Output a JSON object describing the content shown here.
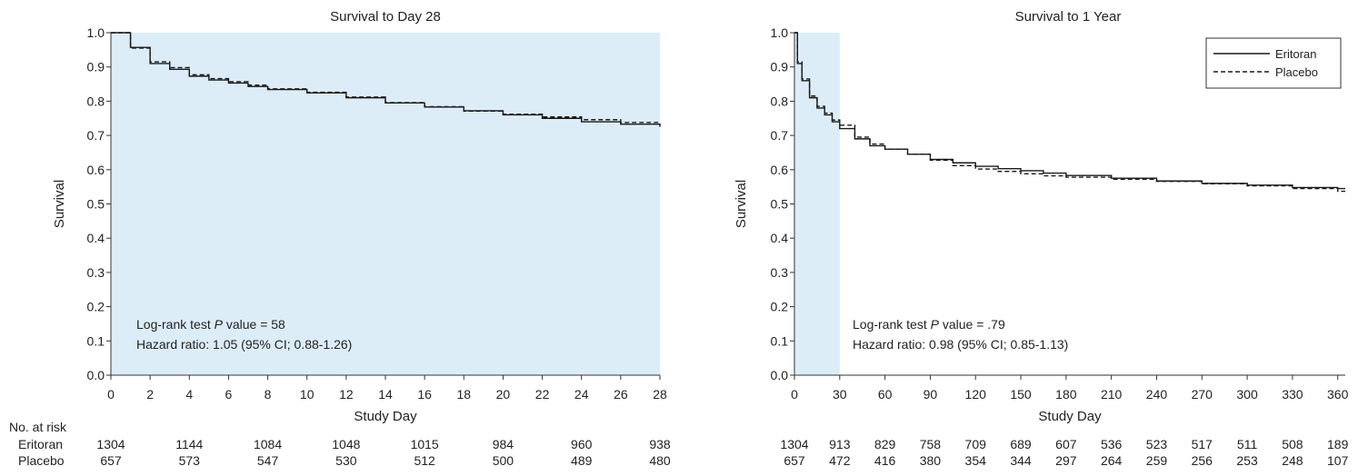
{
  "chart_data": [
    {
      "type": "line",
      "title": "Survival to Day 28",
      "xlabel": "Study Day",
      "ylabel": "Survival",
      "xlim": [
        0,
        28
      ],
      "ylim": [
        0,
        1.0
      ],
      "x_ticks": [
        0,
        2,
        4,
        6,
        8,
        10,
        12,
        14,
        16,
        18,
        20,
        22,
        24,
        26,
        28
      ],
      "y_ticks": [
        "0.0",
        "0.1",
        "0.2",
        "0.3",
        "0.4",
        "0.5",
        "0.6",
        "0.7",
        "0.8",
        "0.9",
        "1.0"
      ],
      "shaded_region": [
        0,
        28
      ],
      "legend": null,
      "annotations": {
        "line1_prefix": "Log-rank test ",
        "line1_italic": "P",
        "line1_suffix": " value = 58",
        "line2": "Hazard ratio: 1.05 (95% CI; 0.88-1.26)"
      },
      "series": [
        {
          "name": "Eritoran",
          "style": "solid",
          "points": [
            [
              0,
              1.0
            ],
            [
              1,
              1.0
            ],
            [
              1,
              0.957
            ],
            [
              2,
              0.95
            ],
            [
              2,
              0.91
            ],
            [
              3,
              0.893
            ],
            [
              4,
              0.873
            ],
            [
              5,
              0.862
            ],
            [
              6,
              0.853
            ],
            [
              7,
              0.843
            ],
            [
              8,
              0.834
            ],
            [
              10,
              0.824
            ],
            [
              12,
              0.81
            ],
            [
              14,
              0.795
            ],
            [
              16,
              0.783
            ],
            [
              18,
              0.772
            ],
            [
              20,
              0.76
            ],
            [
              22,
              0.75
            ],
            [
              24,
              0.74
            ],
            [
              26,
              0.733
            ],
            [
              28,
              0.725
            ]
          ]
        },
        {
          "name": "Placebo",
          "style": "dashed",
          "points": [
            [
              0,
              1.0
            ],
            [
              1,
              1.0
            ],
            [
              1,
              0.955
            ],
            [
              2,
              0.945
            ],
            [
              2,
              0.915
            ],
            [
              3,
              0.898
            ],
            [
              4,
              0.877
            ],
            [
              5,
              0.866
            ],
            [
              6,
              0.857
            ],
            [
              7,
              0.847
            ],
            [
              8,
              0.836
            ],
            [
              10,
              0.826
            ],
            [
              12,
              0.812
            ],
            [
              14,
              0.796
            ],
            [
              16,
              0.784
            ],
            [
              18,
              0.771
            ],
            [
              20,
              0.762
            ],
            [
              22,
              0.754
            ],
            [
              24,
              0.746
            ],
            [
              26,
              0.738
            ],
            [
              28,
              0.732
            ]
          ]
        }
      ],
      "at_risk": {
        "header": "No. at risk",
        "x": [
          0,
          4,
          8,
          12,
          16,
          20,
          24,
          28
        ],
        "rows": [
          {
            "label": "Eritoran",
            "values": [
              "1304",
              "1144",
              "1084",
              "1048",
              "1015",
              "984",
              "960",
              "938"
            ]
          },
          {
            "label": "Placebo",
            "values": [
              "657",
              "573",
              "547",
              "530",
              "512",
              "500",
              "489",
              "480"
            ]
          }
        ]
      }
    },
    {
      "type": "line",
      "title": "Survival to 1 Year",
      "xlabel": "Study Day",
      "ylabel": "Survival",
      "xlim": [
        0,
        365
      ],
      "ylim": [
        0,
        1.0
      ],
      "x_ticks": [
        0,
        30,
        60,
        90,
        120,
        150,
        180,
        210,
        240,
        270,
        300,
        330,
        360
      ],
      "y_ticks": [
        "0.0",
        "0.1",
        "0.2",
        "0.3",
        "0.4",
        "0.5",
        "0.6",
        "0.7",
        "0.8",
        "0.9",
        "1.0"
      ],
      "shaded_region": [
        0,
        30
      ],
      "legend": "top-right",
      "annotations": {
        "line1_prefix": "Log-rank test ",
        "line1_italic": "P",
        "line1_suffix": " value = .79",
        "line2": "Hazard ratio: 0.98 (95% CI; 0.85-1.13)"
      },
      "series": [
        {
          "name": "Eritoran",
          "style": "solid",
          "points": [
            [
              0,
              1.0
            ],
            [
              2,
              0.91
            ],
            [
              5,
              0.86
            ],
            [
              10,
              0.81
            ],
            [
              15,
              0.78
            ],
            [
              20,
              0.76
            ],
            [
              25,
              0.74
            ],
            [
              30,
              0.72
            ],
            [
              40,
              0.69
            ],
            [
              50,
              0.67
            ],
            [
              60,
              0.66
            ],
            [
              75,
              0.645
            ],
            [
              90,
              0.63
            ],
            [
              105,
              0.62
            ],
            [
              120,
              0.61
            ],
            [
              135,
              0.603
            ],
            [
              150,
              0.597
            ],
            [
              165,
              0.59
            ],
            [
              180,
              0.583
            ],
            [
              210,
              0.575
            ],
            [
              240,
              0.567
            ],
            [
              270,
              0.56
            ],
            [
              300,
              0.555
            ],
            [
              330,
              0.548
            ],
            [
              360,
              0.545
            ],
            [
              365,
              0.545
            ]
          ]
        },
        {
          "name": "Placebo",
          "style": "dashed",
          "points": [
            [
              0,
              1.0
            ],
            [
              2,
              0.915
            ],
            [
              5,
              0.865
            ],
            [
              10,
              0.815
            ],
            [
              15,
              0.785
            ],
            [
              20,
              0.765
            ],
            [
              25,
              0.745
            ],
            [
              30,
              0.73
            ],
            [
              40,
              0.695
            ],
            [
              50,
              0.675
            ],
            [
              60,
              0.66
            ],
            [
              75,
              0.645
            ],
            [
              90,
              0.628
            ],
            [
              105,
              0.612
            ],
            [
              120,
              0.602
            ],
            [
              135,
              0.595
            ],
            [
              150,
              0.588
            ],
            [
              165,
              0.582
            ],
            [
              180,
              0.578
            ],
            [
              210,
              0.572
            ],
            [
              240,
              0.566
            ],
            [
              270,
              0.559
            ],
            [
              300,
              0.553
            ],
            [
              330,
              0.545
            ],
            [
              360,
              0.537
            ],
            [
              365,
              0.537
            ]
          ]
        }
      ],
      "at_risk": {
        "header": "",
        "x": [
          0,
          30,
          60,
          90,
          120,
          150,
          180,
          210,
          240,
          270,
          300,
          330,
          360
        ],
        "rows": [
          {
            "label": "",
            "values": [
              "1304",
              "913",
              "829",
              "758",
              "709",
              "689",
              "607",
              "536",
              "523",
              "517",
              "511",
              "508",
              "189"
            ]
          },
          {
            "label": "",
            "values": [
              "657",
              "472",
              "416",
              "380",
              "354",
              "344",
              "297",
              "264",
              "259",
              "256",
              "253",
              "248",
              "107"
            ]
          }
        ]
      }
    }
  ],
  "colors": {
    "shade": "#dcedf8",
    "line": "#1a1a1a",
    "axis": "#333333"
  }
}
